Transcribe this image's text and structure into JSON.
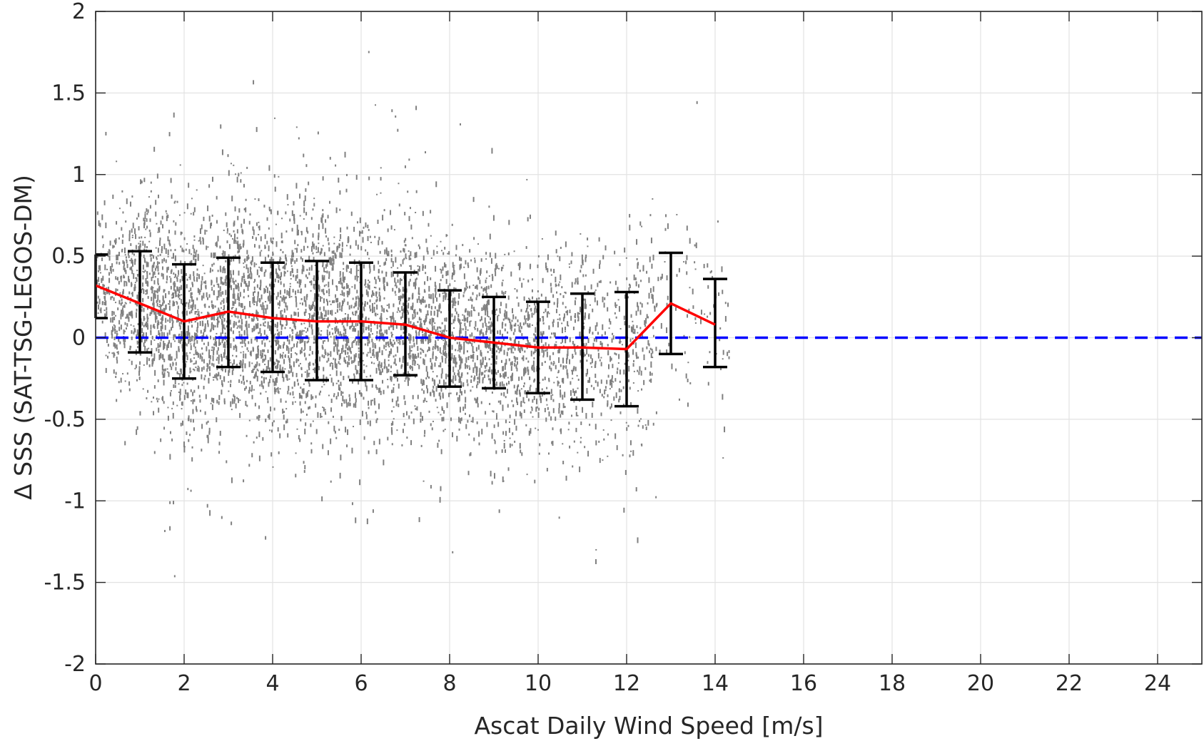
{
  "chart_data": {
    "type": "scatter",
    "title": "",
    "xlabel": "Ascat Daily Wind Speed [m/s]",
    "ylabel": "Δ SSS (SAT-TSG-LEGOS-DM)",
    "xlim": [
      0,
      25
    ],
    "ylim": [
      -2,
      2
    ],
    "x_ticks": [
      "0",
      "2",
      "4",
      "6",
      "8",
      "10",
      "12",
      "14",
      "16",
      "18",
      "20",
      "22",
      "24"
    ],
    "y_ticks": [
      "2",
      "1.5",
      "1",
      "0.5",
      "0",
      "-0.5",
      "-1",
      "-1.5",
      "-2"
    ],
    "grid": true,
    "scatter_color": "#808080",
    "scatter_x_range": [
      0,
      14.3
    ],
    "binned_mean": {
      "color": "#ff0000",
      "x": [
        0,
        2,
        3,
        4,
        5,
        6,
        7,
        8,
        9,
        10,
        11,
        12,
        13,
        14
      ],
      "y": [
        0.32,
        0.1,
        0.16,
        0.12,
        0.1,
        0.1,
        0.08,
        0.0,
        -0.03,
        -0.06,
        -0.06,
        -0.07,
        0.21,
        0.08
      ]
    },
    "error_bars": {
      "color": "#000000",
      "x": [
        0,
        1,
        2,
        3,
        4,
        5,
        6,
        7,
        8,
        9,
        10,
        11,
        12,
        13,
        14
      ],
      "low": [
        0.12,
        -0.09,
        -0.25,
        -0.18,
        -0.21,
        -0.26,
        -0.26,
        -0.23,
        -0.3,
        -0.31,
        -0.34,
        -0.38,
        -0.42,
        -0.1,
        -0.18
      ],
      "high": [
        0.51,
        0.53,
        0.45,
        0.49,
        0.46,
        0.47,
        0.46,
        0.4,
        0.29,
        0.25,
        0.22,
        0.27,
        0.28,
        0.52,
        0.36
      ]
    },
    "reference_line": {
      "y": 0,
      "style": "dashed",
      "color": "#0000ff"
    }
  }
}
